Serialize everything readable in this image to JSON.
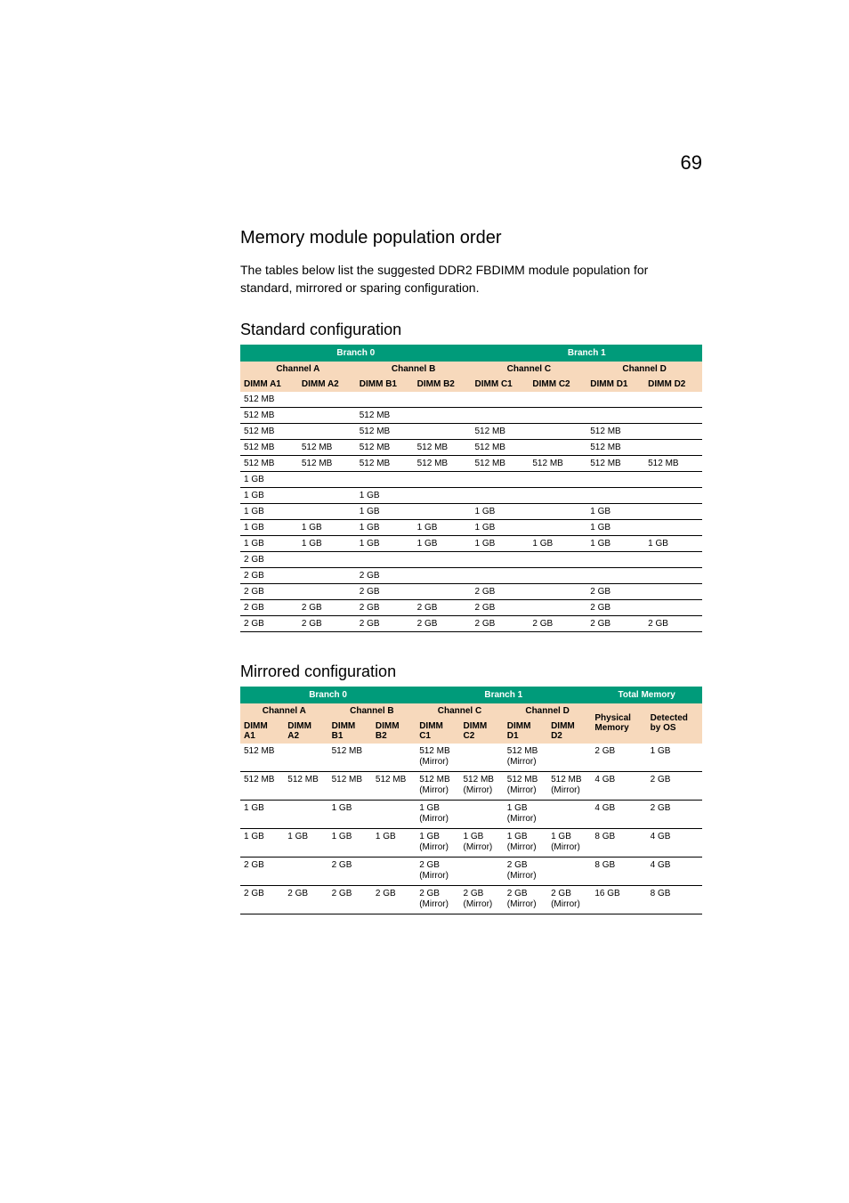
{
  "page_number": "69",
  "section_title": "Memory module population order",
  "section_body": "The tables below list the suggested DDR2 FBDIMM module population for standard, mirrored or sparing configuration.",
  "standard": {
    "title": "Standard configuration",
    "branch_headers": [
      "Branch 0",
      "Branch 1"
    ],
    "channel_headers": [
      "Channel A",
      "Channel B",
      "Channel C",
      "Channel D"
    ],
    "dimm_headers": [
      "DIMM A1",
      "DIMM A2",
      "DIMM B1",
      "DIMM B2",
      "DIMM C1",
      "DIMM C2",
      "DIMM D1",
      "DIMM D2"
    ],
    "rows": [
      [
        "512 MB",
        "",
        "",
        "",
        "",
        "",
        "",
        ""
      ],
      [
        "512 MB",
        "",
        "512 MB",
        "",
        "",
        "",
        "",
        ""
      ],
      [
        "512 MB",
        "",
        "512 MB",
        "",
        "512 MB",
        "",
        "512 MB",
        ""
      ],
      [
        "512 MB",
        "512 MB",
        "512 MB",
        "512 MB",
        "512 MB",
        "",
        "512 MB",
        ""
      ],
      [
        "512 MB",
        "512 MB",
        "512 MB",
        "512 MB",
        "512 MB",
        "512 MB",
        "512 MB",
        "512 MB"
      ],
      [
        "1 GB",
        "",
        "",
        "",
        "",
        "",
        "",
        ""
      ],
      [
        "1 GB",
        "",
        "1 GB",
        "",
        "",
        "",
        "",
        ""
      ],
      [
        "1 GB",
        "",
        "1 GB",
        "",
        "1 GB",
        "",
        "1 GB",
        ""
      ],
      [
        "1 GB",
        "1 GB",
        "1 GB",
        "1 GB",
        "1 GB",
        "",
        "1 GB",
        ""
      ],
      [
        "1 GB",
        "1 GB",
        "1 GB",
        "1 GB",
        "1 GB",
        "1 GB",
        "1 GB",
        "1 GB"
      ],
      [
        "2 GB",
        "",
        "",
        "",
        "",
        "",
        "",
        ""
      ],
      [
        "2 GB",
        "",
        "2 GB",
        "",
        "",
        "",
        "",
        ""
      ],
      [
        "2 GB",
        "",
        "2 GB",
        "",
        "2 GB",
        "",
        "2 GB",
        ""
      ],
      [
        "2 GB",
        "2 GB",
        "2 GB",
        "2 GB",
        "2 GB",
        "",
        "2 GB",
        ""
      ],
      [
        "2 GB",
        "2 GB",
        "2 GB",
        "2 GB",
        "2 GB",
        "2 GB",
        "2 GB",
        "2 GB"
      ]
    ]
  },
  "mirrored": {
    "title": "Mirrored configuration",
    "top_headers": [
      "Branch 0",
      "Branch 1",
      "Total Memory"
    ],
    "channel_headers": [
      "Channel A",
      "Channel B",
      "Channel C",
      "Channel D"
    ],
    "dimm_headers": [
      "DIMM A1",
      "DIMM A2",
      "DIMM B1",
      "DIMM B2",
      "DIMM C1",
      "DIMM C2",
      "DIMM D1",
      "DIMM D2",
      "Physical Memory",
      "Detected by OS"
    ],
    "rows": [
      [
        "512 MB",
        "",
        "512 MB",
        "",
        "512 MB (Mirror)",
        "",
        "512 MB (Mirror)",
        "",
        "2 GB",
        "1 GB"
      ],
      [
        "512 MB",
        "512 MB",
        "512 MB",
        "512 MB",
        "512 MB (Mirror)",
        "512 MB (Mirror)",
        "512 MB (Mirror)",
        "512 MB (Mirror)",
        "4 GB",
        "2 GB"
      ],
      [
        "1 GB",
        "",
        "1 GB",
        "",
        "1 GB (Mirror)",
        "",
        "1 GB (Mirror)",
        "",
        "4 GB",
        "2 GB"
      ],
      [
        "1 GB",
        "1 GB",
        "1 GB",
        "1 GB",
        "1 GB (Mirror)",
        "1 GB (Mirror)",
        "1 GB (Mirror)",
        "1 GB (Mirror)",
        "8 GB",
        "4 GB"
      ],
      [
        "2 GB",
        "",
        "2 GB",
        "",
        "2 GB (Mirror)",
        "",
        "2 GB (Mirror)",
        "",
        "8 GB",
        "4 GB"
      ],
      [
        "2 GB",
        "2 GB",
        "2 GB",
        "2 GB",
        "2 GB (Mirror)",
        "2 GB (Mirror)",
        "2 GB (Mirror)",
        "2 GB (Mirror)",
        "16 GB",
        "8 GB"
      ]
    ]
  },
  "colors": {
    "brand_green": "#009b7a",
    "peach": "#f7d9bc",
    "border": "#000000"
  }
}
